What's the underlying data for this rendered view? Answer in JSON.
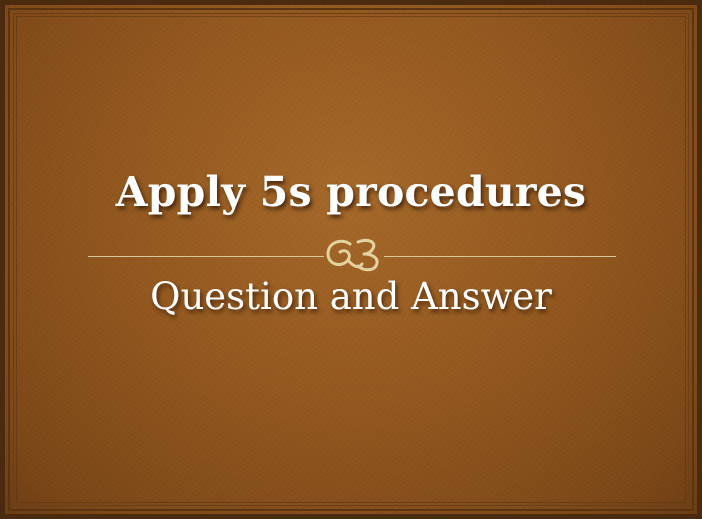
{
  "slide": {
    "title": "Apply 5s procedures",
    "subtitle": "Question and Answer",
    "ornament_icon": "scroll-flourish-icon",
    "colors": {
      "background": "#93581f",
      "frame": "#4a2b10",
      "divider": "#d9c89a",
      "ornament": "#e3d3a0",
      "text": "#ffffff"
    }
  }
}
